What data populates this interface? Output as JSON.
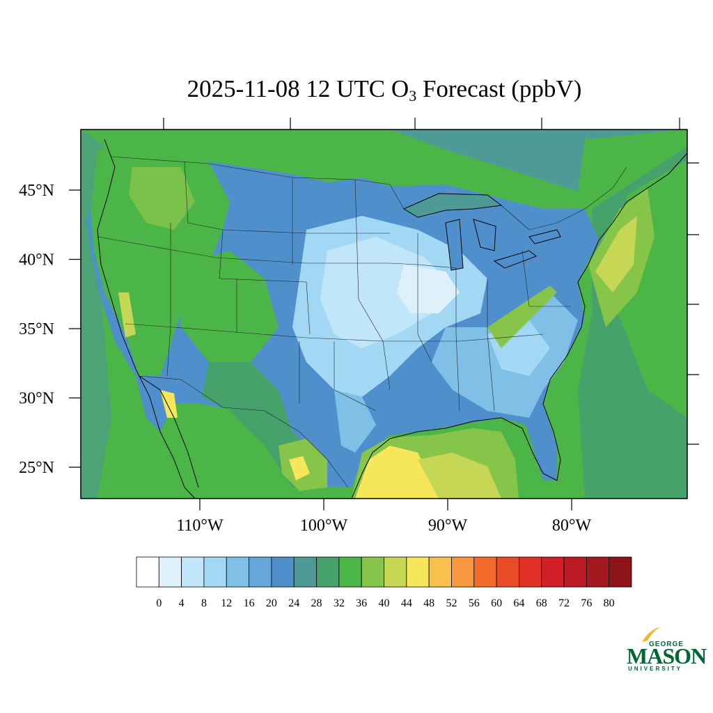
{
  "title": {
    "date": "2025-11-08",
    "hour": "12 UTC",
    "species_main": "O",
    "species_sub": "3",
    "suffix": "Forecast (ppbV)"
  },
  "map": {
    "lat_labels": [
      "45°N",
      "40°N",
      "35°N",
      "30°N",
      "25°N"
    ],
    "lon_labels": [
      "110°W",
      "100°W",
      "90°W",
      "80°W"
    ],
    "lat_values": [
      45,
      40,
      35,
      30,
      25
    ],
    "lon_values": [
      -110,
      -100,
      -90,
      -80
    ]
  },
  "colorbar": {
    "ticks": [
      "0",
      "4",
      "8",
      "12",
      "16",
      "20",
      "24",
      "28",
      "32",
      "36",
      "40",
      "44",
      "48",
      "52",
      "56",
      "60",
      "64",
      "68",
      "72",
      "76",
      "80"
    ],
    "colors": [
      "#ffffff",
      "#def1fb",
      "#c1e6f9",
      "#a2d8f4",
      "#80bfe6",
      "#66a6da",
      "#4f8fcc",
      "#4d9a96",
      "#46a16b",
      "#4cb548",
      "#86c44a",
      "#c6d655",
      "#f6e65a",
      "#f8c04d",
      "#f7983e",
      "#f36c2c",
      "#ea4b27",
      "#e03127",
      "#d21f2a",
      "#bc1b26",
      "#a3191f",
      "#8c1317"
    ]
  },
  "logo": {
    "line1": "GEORGE",
    "line2": "MASON",
    "line3": "UNIVERSITY"
  }
}
